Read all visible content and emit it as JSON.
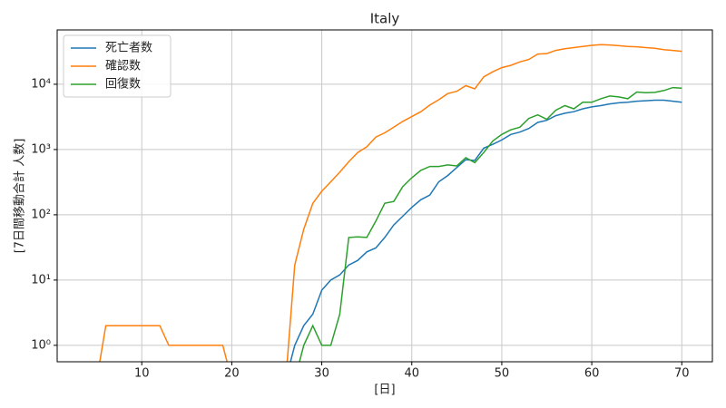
{
  "chart_data": {
    "type": "line",
    "title": "Italy",
    "xlabel": "[日]",
    "ylabel": "[7日間移動合計 人数]",
    "x": [
      5,
      6,
      7,
      8,
      9,
      10,
      11,
      12,
      13,
      14,
      15,
      16,
      17,
      18,
      19,
      20,
      21,
      22,
      23,
      24,
      25,
      26,
      27,
      28,
      29,
      30,
      31,
      32,
      33,
      34,
      35,
      36,
      37,
      38,
      39,
      40,
      41,
      42,
      43,
      44,
      45,
      46,
      47,
      48,
      49,
      50,
      51,
      52,
      53,
      54,
      55,
      56,
      57,
      58,
      59,
      60,
      61,
      62,
      63,
      64,
      65,
      66,
      67,
      68,
      69,
      70
    ],
    "series": [
      {
        "name": "死亡者数",
        "color": "#1f77b4",
        "values": [
          0,
          0,
          0,
          0,
          0,
          0,
          0,
          0,
          0,
          0,
          0,
          0,
          0,
          0,
          0,
          0,
          0,
          0,
          0,
          0,
          0,
          0,
          1,
          2,
          3,
          7,
          10,
          12,
          17,
          20,
          27,
          31,
          45,
          70,
          95,
          130,
          170,
          200,
          320,
          400,
          530,
          700,
          680,
          1050,
          1200,
          1400,
          1700,
          1850,
          2100,
          2600,
          2800,
          3300,
          3600,
          3800,
          4200,
          4500,
          4700,
          5000,
          5200,
          5300,
          5500,
          5600,
          5700,
          5700,
          5500,
          5300
        ]
      },
      {
        "name": "確認数",
        "color": "#ff7f0e",
        "values": [
          0,
          2,
          2,
          2,
          2,
          2,
          2,
          2,
          1,
          1,
          1,
          1,
          1,
          1,
          1,
          0,
          0,
          0,
          0,
          0,
          0,
          0,
          17,
          60,
          150,
          230,
          320,
          450,
          650,
          900,
          1100,
          1550,
          1800,
          2200,
          2700,
          3200,
          3800,
          4800,
          5800,
          7200,
          7800,
          9500,
          8500,
          13000,
          15500,
          18000,
          19500,
          22000,
          24000,
          29000,
          29500,
          33000,
          35000,
          36500,
          38000,
          39500,
          40500,
          40000,
          39000,
          38000,
          37500,
          36500,
          35500,
          34000,
          33000,
          32000
        ]
      },
      {
        "name": "回復数",
        "color": "#2ca02c",
        "values": [
          0,
          0,
          0,
          0,
          0,
          0,
          0,
          0,
          0,
          0,
          0,
          0,
          0,
          0,
          0,
          0,
          0,
          0,
          0,
          0,
          0,
          0,
          0,
          1,
          2,
          1,
          1,
          3,
          45,
          46,
          45,
          80,
          150,
          160,
          270,
          370,
          480,
          550,
          550,
          580,
          560,
          750,
          630,
          900,
          1350,
          1700,
          2000,
          2200,
          3000,
          3400,
          2900,
          4000,
          4700,
          4200,
          5300,
          5300,
          6000,
          6600,
          6400,
          6000,
          7600,
          7400,
          7500,
          8000,
          8900,
          8700
        ]
      }
    ],
    "xlim": [
      0.6,
      73.4
    ],
    "xticks": [
      10,
      20,
      30,
      40,
      50,
      60,
      70
    ],
    "ylim": [
      0.56,
      68000
    ],
    "log_y": true,
    "yticks": [
      {
        "value": 1,
        "label": "10⁰"
      },
      {
        "value": 10,
        "label": "10¹"
      },
      {
        "value": 100,
        "label": "10²"
      },
      {
        "value": 1000,
        "label": "10³"
      },
      {
        "value": 10000,
        "label": "10⁴"
      }
    ],
    "grid": true,
    "legend": "upper-left"
  }
}
